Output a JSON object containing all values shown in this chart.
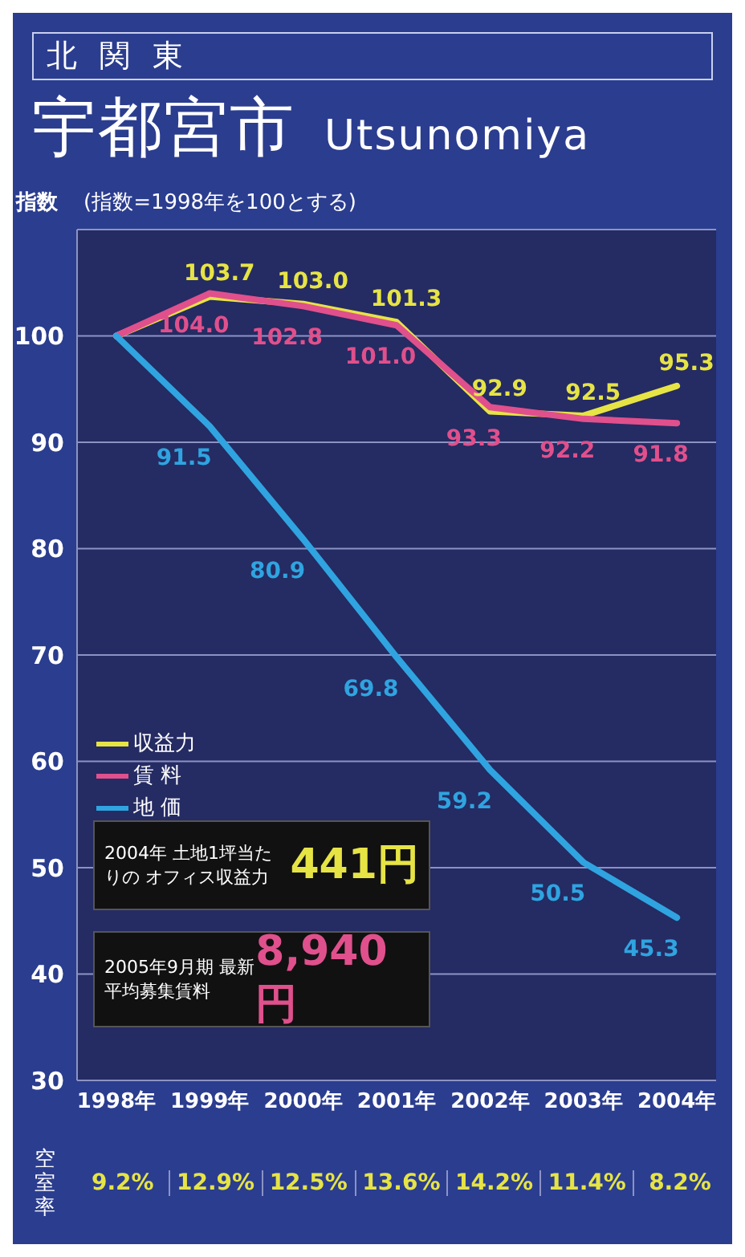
{
  "chart_data": {
    "type": "line",
    "title": "北関東",
    "subtitle": "宇都宮市 Utsunomiya",
    "ylabel": "指数",
    "categories": [
      "1998年",
      "1999年",
      "2000年",
      "2001年",
      "2002年",
      "2003年",
      "2004年"
    ],
    "series": [
      {
        "name": "収益力",
        "color": "#e6e445",
        "values": [
          100,
          103.7,
          103.0,
          101.3,
          92.9,
          92.5,
          95.3
        ],
        "value_labels": [
          null,
          "103.7",
          "103.0",
          "101.3",
          "92.9",
          "92.5",
          "95.3"
        ]
      },
      {
        "name": "賃 料",
        "color": "#e0508c",
        "values": [
          100,
          104.0,
          102.8,
          101.0,
          93.3,
          92.2,
          91.8
        ],
        "value_labels": [
          null,
          "104.0",
          "102.8",
          "101.0",
          "93.3",
          "92.2",
          "91.8"
        ]
      },
      {
        "name": "地 価",
        "color": "#2fa4e0",
        "values": [
          100,
          91.5,
          80.9,
          69.8,
          59.2,
          50.5,
          45.3
        ],
        "value_labels": [
          null,
          "91.5",
          "80.9",
          "69.8",
          "59.2",
          "50.5",
          "45.3"
        ]
      }
    ],
    "ylim": [
      30,
      110
    ],
    "yticks": [
      30,
      40,
      50,
      60,
      70,
      80,
      90,
      100
    ],
    "grid": "y",
    "legend": "left",
    "marker": "none",
    "line_style": "solid",
    "annotations": [
      "(指数=1998年を100とする)",
      "2004年 土地1坪当たりの オフィス収益力",
      "441円",
      "2005年9月期 最新平均募集賃料",
      "8,940円",
      "空室率",
      "9.2%",
      "12.9%",
      "12.5%",
      "13.6%",
      "14.2%",
      "11.4%",
      "8.2%"
    ]
  }
}
